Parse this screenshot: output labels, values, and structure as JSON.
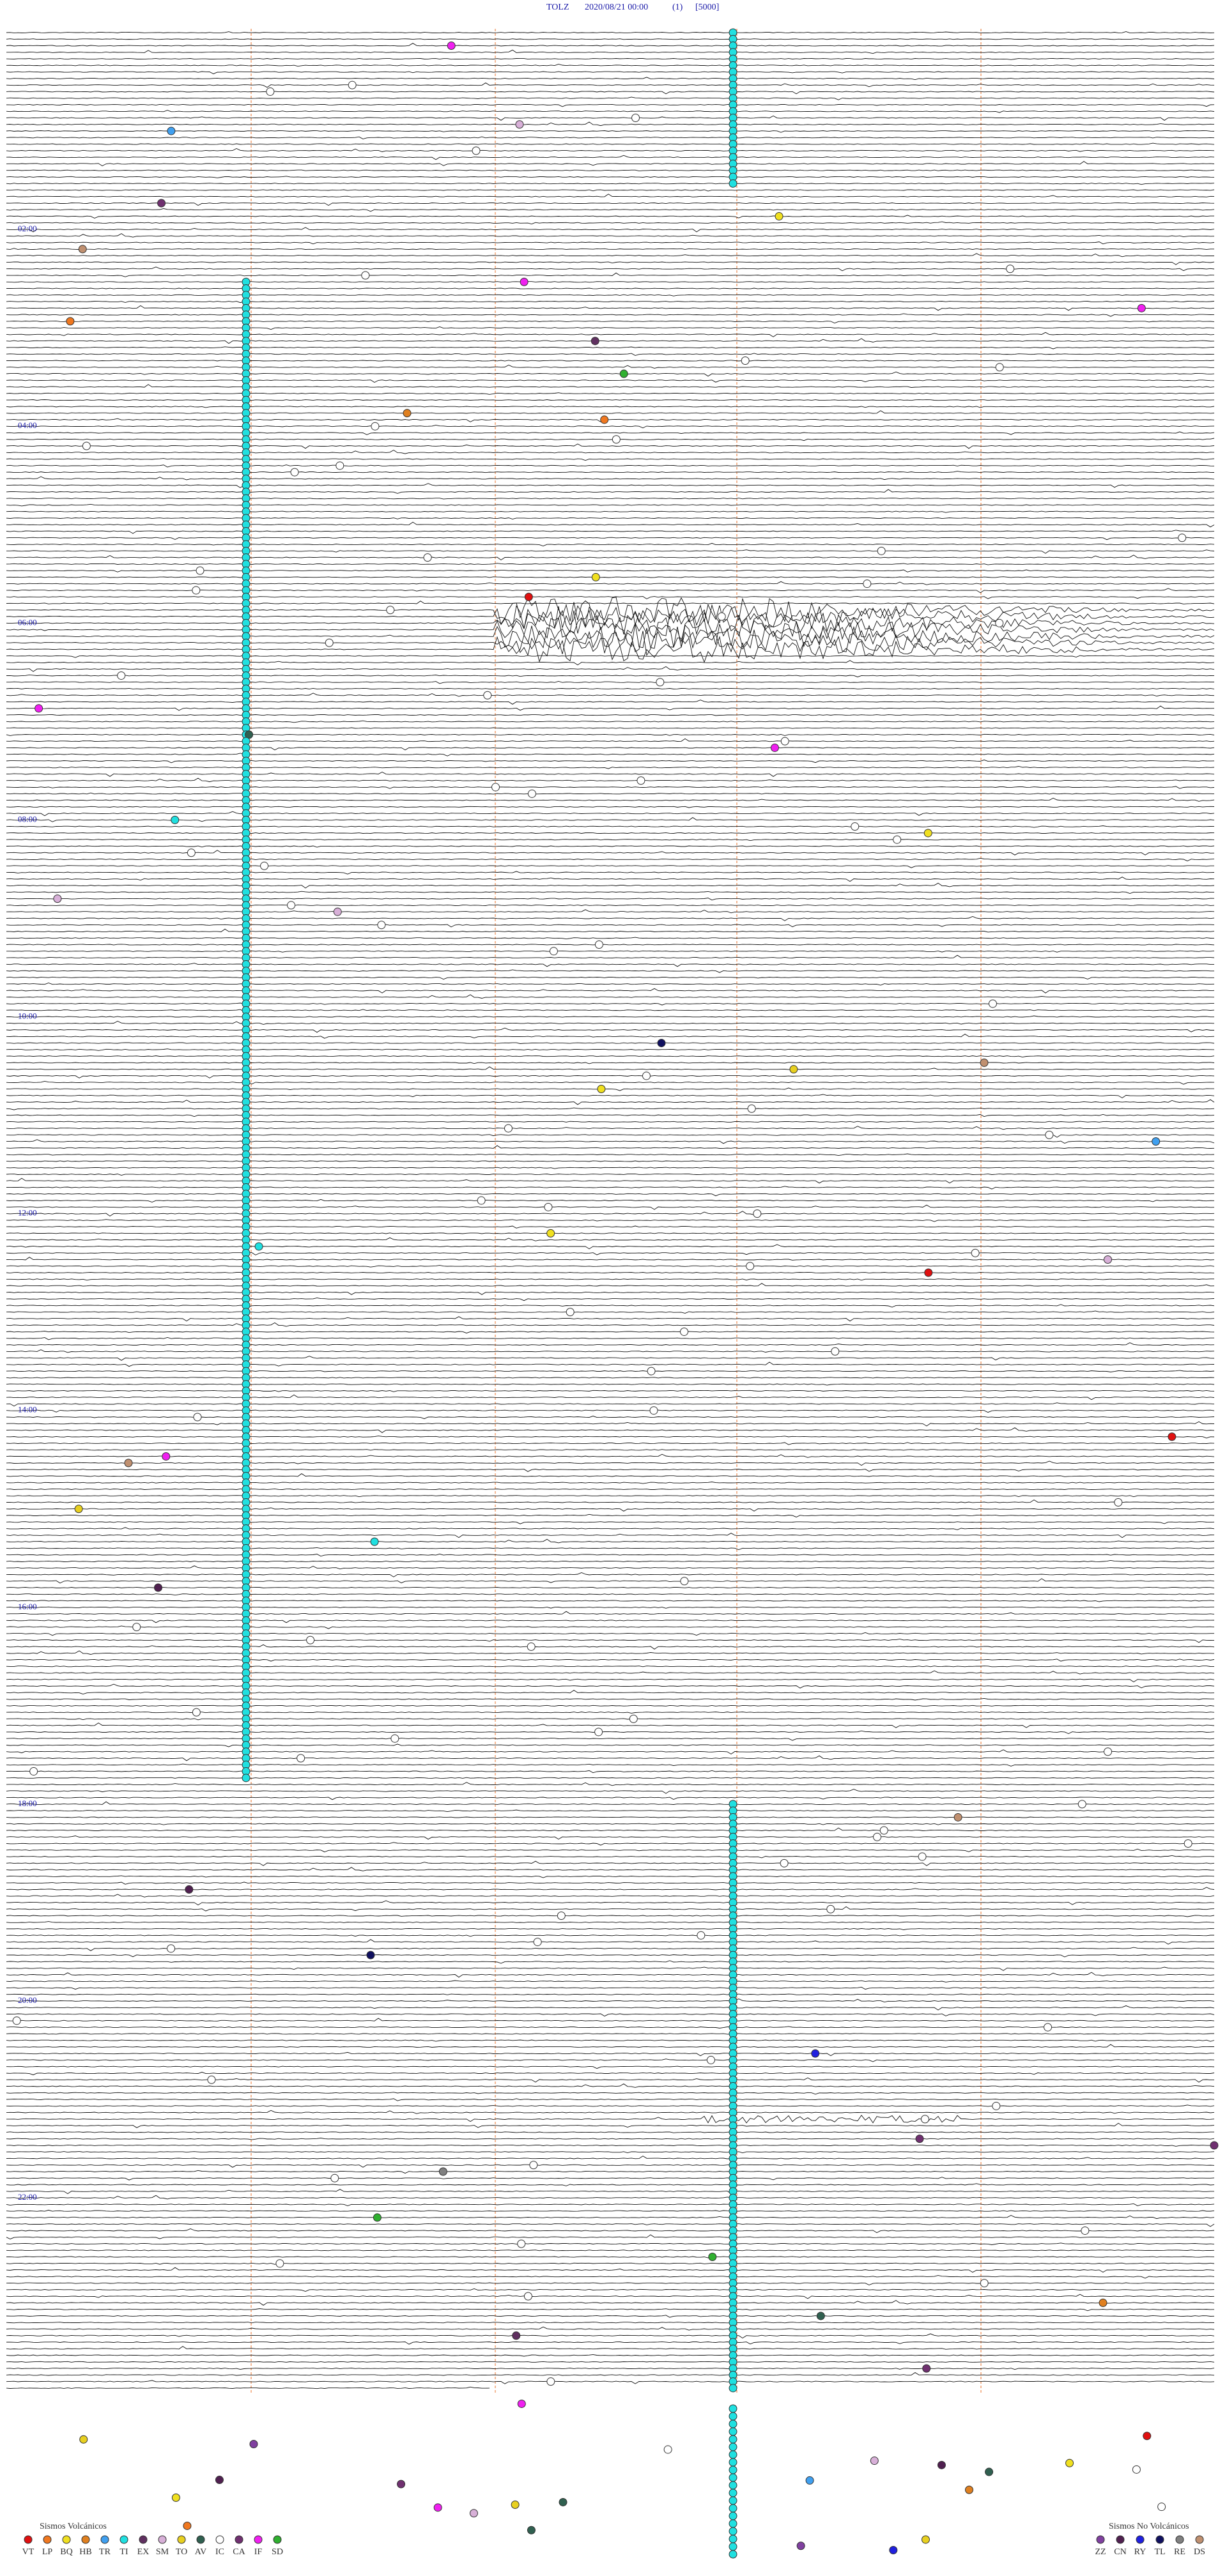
{
  "header": {
    "station": "TOLZ",
    "datetime": "2020/08/21 00:00",
    "channel": "(1)",
    "scale": "[5000]"
  },
  "time_labels": [
    "02:00",
    "04:00",
    "06:00",
    "08:00",
    "10:00",
    "12:00",
    "14:00",
    "16:00",
    "18:00",
    "20:00",
    "22:00"
  ],
  "legend": {
    "volcanic": {
      "title": "Sismos Volcánicos",
      "types": [
        {
          "code": "VT",
          "color": "#e01010"
        },
        {
          "code": "LP",
          "color": "#f07820"
        },
        {
          "code": "BQ",
          "color": "#f0e020"
        },
        {
          "code": "HB",
          "color": "#e08020"
        },
        {
          "code": "TR",
          "color": "#40a0f0"
        },
        {
          "code": "TI",
          "color": "#20e0e0"
        },
        {
          "code": "EX",
          "color": "#603060"
        },
        {
          "code": "SM",
          "color": "#d8b0d8"
        },
        {
          "code": "TO",
          "color": "#e8d020"
        },
        {
          "code": "AV",
          "color": "#306050"
        },
        {
          "code": "IC",
          "color": "#ffffff"
        },
        {
          "code": "CA",
          "color": "#703070"
        },
        {
          "code": "IF",
          "color": "#f020f0"
        },
        {
          "code": "SD",
          "color": "#30b030"
        }
      ]
    },
    "non_volcanic": {
      "title": "Sismos No Volcánicos",
      "types": [
        {
          "code": "ZZ",
          "color": "#8040a0"
        },
        {
          "code": "CN",
          "color": "#502050"
        },
        {
          "code": "RY",
          "color": "#2020e0"
        },
        {
          "code": "TL",
          "color": "#101060"
        },
        {
          "code": "RE",
          "color": "#808080"
        },
        {
          "code": "DS",
          "color": "#c09070"
        }
      ]
    }
  }
}
